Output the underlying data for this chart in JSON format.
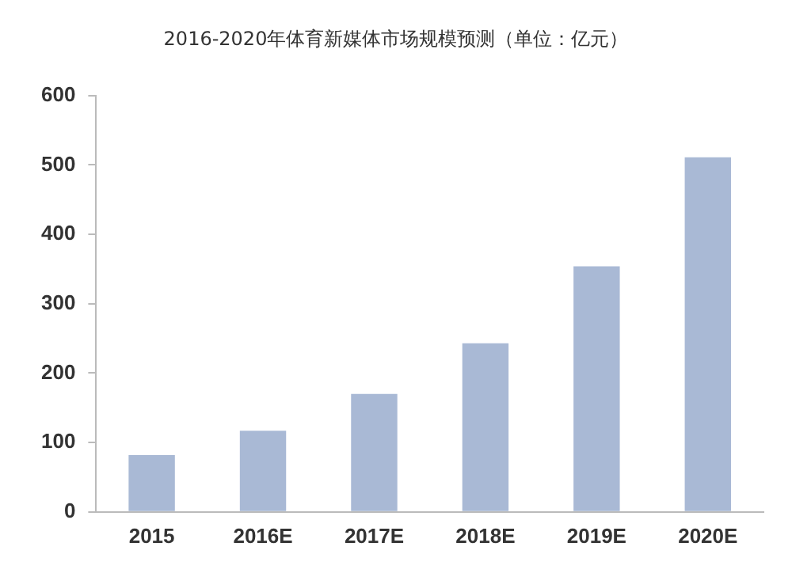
{
  "chart_data": {
    "type": "bar",
    "title": "2016-2020年体育新媒体市场规模预测（单位：亿元）",
    "categories": [
      "2015",
      "2016E",
      "2017E",
      "2018E",
      "2019E",
      "2020E"
    ],
    "values": [
      82,
      117,
      170,
      243,
      354,
      511
    ],
    "color": "#a9b9d5",
    "ylim": [
      0,
      600
    ],
    "yticks": [
      0,
      100,
      200,
      300,
      400,
      500,
      600
    ],
    "grid": false,
    "legend": false
  }
}
